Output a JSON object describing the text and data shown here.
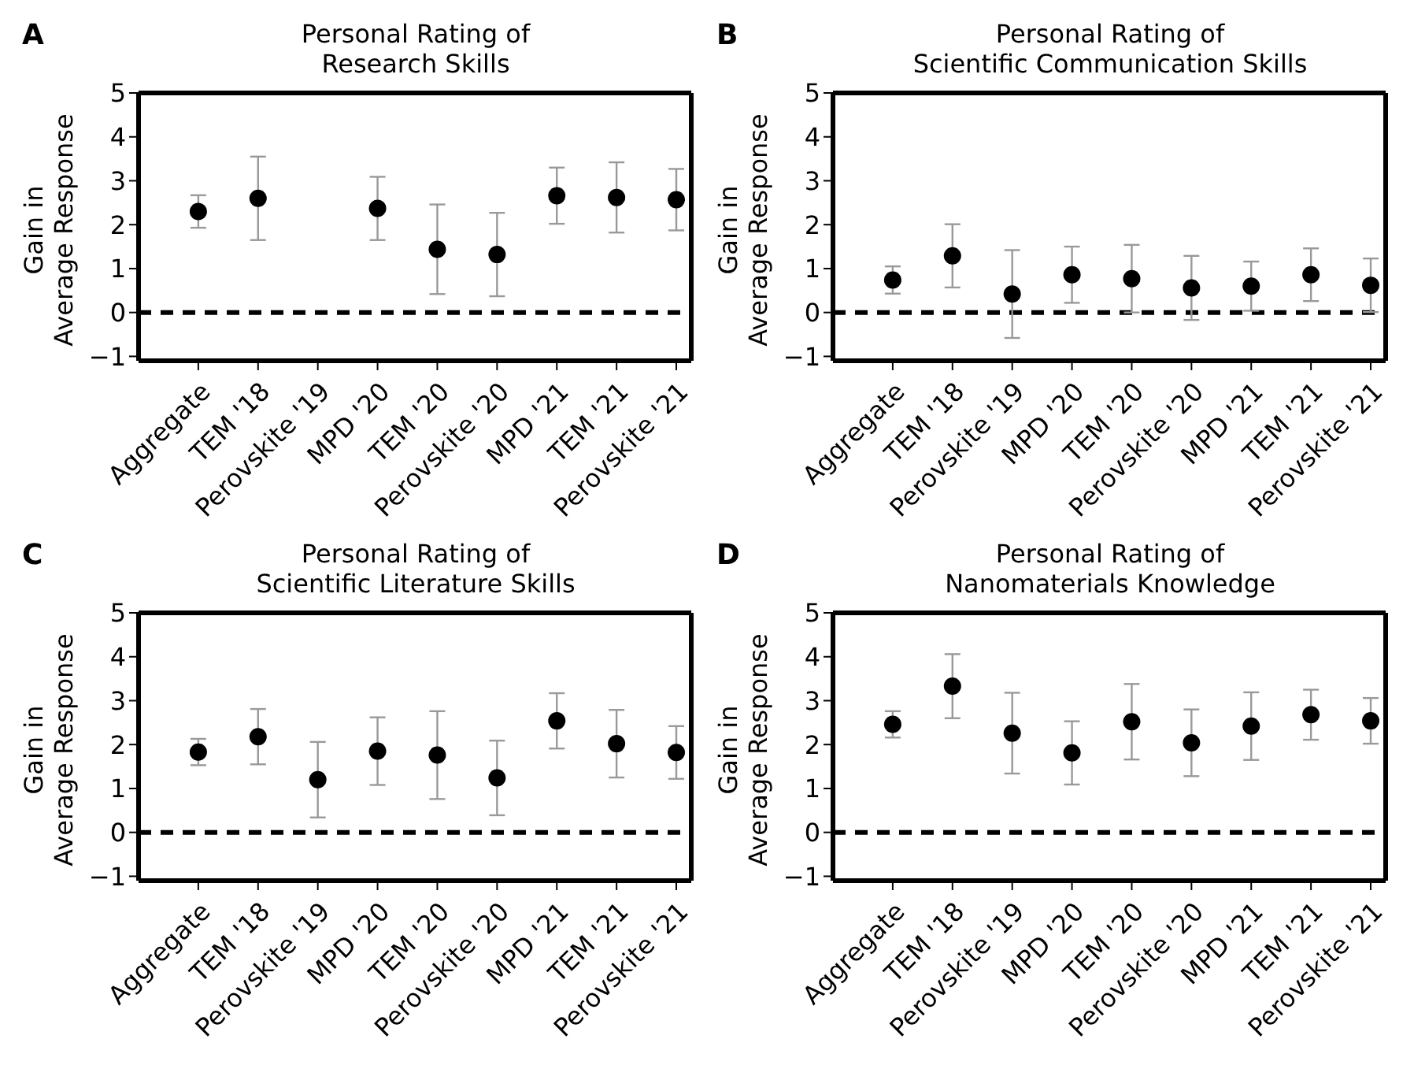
{
  "chart_data": [
    {
      "type": "scatter",
      "title": "Personal Rating of\nResearch Skills",
      "ylabel": "Gain in\nAverage Response",
      "annotations": [
        "A"
      ],
      "categories": [
        "Aggregate",
        "TEM '18",
        "Perovskite '19",
        "MPD '20",
        "TEM '20",
        "Perovskite '20",
        "MPD '21",
        "TEM '21",
        "Perovskite '21"
      ],
      "series": [
        {
          "color": "#000000",
          "values": [
            2.3,
            2.6,
            null,
            2.37,
            1.44,
            1.32,
            2.66,
            2.62,
            2.57
          ],
          "errors": [
            0.37,
            0.95,
            null,
            0.72,
            1.02,
            0.95,
            0.64,
            0.8,
            0.7
          ]
        }
      ],
      "ylim": [
        -1.1,
        5
      ],
      "yticks": [
        -1,
        0,
        1,
        2,
        3,
        4,
        5
      ],
      "ref_lines": [
        {
          "axis": "y",
          "value": 0,
          "color": "#000000",
          "line_style": "dashed"
        }
      ],
      "marker": "circle"
    },
    {
      "type": "scatter",
      "title": "Personal Rating of\nScientific Communication Skills",
      "ylabel": "Gain in\nAverage Response",
      "annotations": [
        "B"
      ],
      "categories": [
        "Aggregate",
        "TEM '18",
        "Perovskite '19",
        "MPD '20",
        "TEM '20",
        "Perovskite '20",
        "MPD '21",
        "TEM '21",
        "Perovskite '21"
      ],
      "series": [
        {
          "color": "#000000",
          "values": [
            0.74,
            1.29,
            0.42,
            0.86,
            0.77,
            0.56,
            0.6,
            0.86,
            0.62
          ],
          "errors": [
            0.31,
            0.72,
            1.0,
            0.64,
            0.77,
            0.73,
            0.56,
            0.6,
            0.61
          ]
        }
      ],
      "ylim": [
        -1.1,
        5
      ],
      "yticks": [
        -1,
        0,
        1,
        2,
        3,
        4,
        5
      ],
      "ref_lines": [
        {
          "axis": "y",
          "value": 0,
          "color": "#000000",
          "line_style": "dashed"
        }
      ],
      "marker": "circle"
    },
    {
      "type": "scatter",
      "title": "Personal Rating of\nScientific Literature Skills",
      "ylabel": "Gain in\nAverage Response",
      "annotations": [
        "C"
      ],
      "categories": [
        "Aggregate",
        "TEM '18",
        "Perovskite '19",
        "MPD '20",
        "TEM '20",
        "Perovskite '20",
        "MPD '21",
        "TEM '21",
        "Perovskite '21"
      ],
      "series": [
        {
          "color": "#000000",
          "values": [
            1.83,
            2.18,
            1.2,
            1.85,
            1.76,
            1.24,
            2.54,
            2.02,
            1.82
          ],
          "errors": [
            0.3,
            0.63,
            0.86,
            0.77,
            1.0,
            0.85,
            0.63,
            0.77,
            0.6
          ]
        }
      ],
      "ylim": [
        -1.1,
        5
      ],
      "yticks": [
        -1,
        0,
        1,
        2,
        3,
        4,
        5
      ],
      "ref_lines": [
        {
          "axis": "y",
          "value": 0,
          "color": "#000000",
          "line_style": "dashed"
        }
      ],
      "marker": "circle"
    },
    {
      "type": "scatter",
      "title": "Personal Rating of\nNanomaterials Knowledge",
      "ylabel": "Gain in\nAverage Response",
      "annotations": [
        "D"
      ],
      "categories": [
        "Aggregate",
        "TEM '18",
        "Perovskite '19",
        "MPD '20",
        "TEM '20",
        "Perovskite '20",
        "MPD '21",
        "TEM '21",
        "Perovskite '21"
      ],
      "series": [
        {
          "color": "#000000",
          "values": [
            2.46,
            3.33,
            2.26,
            1.81,
            2.52,
            2.04,
            2.42,
            2.68,
            2.54
          ],
          "errors": [
            0.3,
            0.73,
            0.92,
            0.72,
            0.86,
            0.76,
            0.77,
            0.57,
            0.52
          ]
        }
      ],
      "ylim": [
        -1.1,
        5
      ],
      "yticks": [
        -1,
        0,
        1,
        2,
        3,
        4,
        5
      ],
      "ref_lines": [
        {
          "axis": "y",
          "value": 0,
          "color": "#000000",
          "line_style": "dashed"
        }
      ],
      "marker": "circle"
    }
  ]
}
